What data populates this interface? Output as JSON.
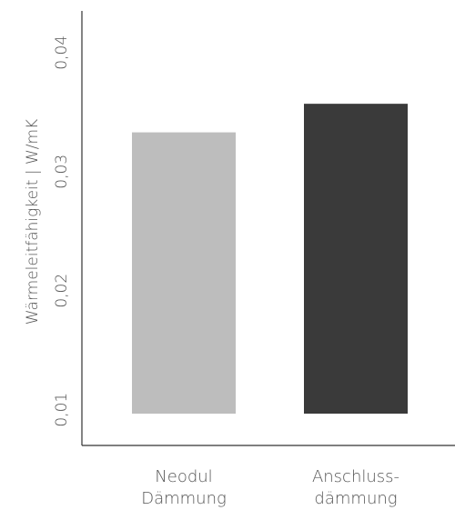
{
  "chart_data": {
    "type": "bar",
    "title": "",
    "xlabel": "",
    "ylabel": "Wärmeleitfähigkeit | W/mK",
    "ylim": [
      0.007,
      0.0435
    ],
    "yticks": [
      "0,01",
      "0,02",
      "0,03",
      "0,04"
    ],
    "ytick_values": [
      0.01,
      0.02,
      0.03,
      0.04
    ],
    "categories": [
      {
        "line1": "Neodul",
        "line2": "Dämmung"
      },
      {
        "line1": "Anschluss-",
        "line2": "dämmung"
      }
    ],
    "values": [
      0.0333,
      0.0357
    ],
    "bar_colors": [
      "#bdbdbd",
      "#3a3a3a"
    ],
    "grid": false,
    "legend": "none"
  }
}
